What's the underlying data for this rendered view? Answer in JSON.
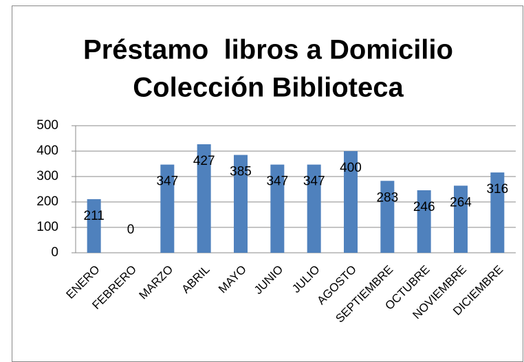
{
  "chart_data": {
    "type": "bar",
    "title": [
      "Préstamo  libros a Domicilio",
      "Colección Biblioteca"
    ],
    "categories": [
      "ENERO",
      "FEBRERO",
      "MARZO",
      "ABRIL",
      "MAYO",
      "JUNIO",
      "JULIO",
      "AGOSTO",
      "SEPTIEMBRE",
      "OCTUBRE",
      "NOVIEMBRE",
      "DICIEMBRE"
    ],
    "values": [
      211,
      0,
      347,
      427,
      385,
      347,
      347,
      400,
      283,
      246,
      264,
      316
    ],
    "color": "#4f81bd",
    "ylim": [
      0,
      500
    ],
    "yticks": [
      0,
      100,
      200,
      300,
      400,
      500
    ],
    "grid": true
  }
}
